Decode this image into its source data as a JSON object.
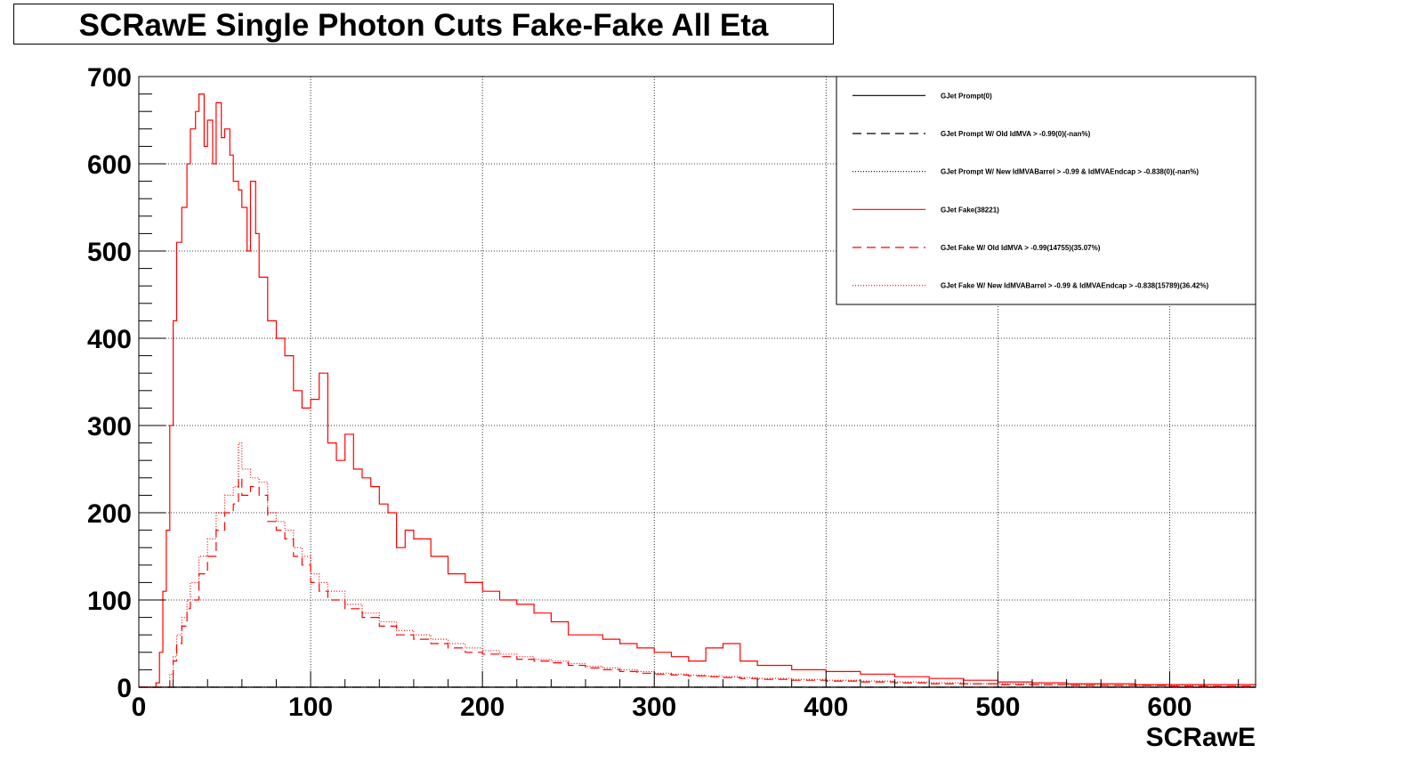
{
  "chart_data": {
    "type": "line",
    "title": "SCRawE Single Photon Cuts Fake-Fake All Eta",
    "xlabel": "SCRawE",
    "ylabel": "",
    "xlim": [
      0,
      650
    ],
    "ylim": [
      0,
      700
    ],
    "x_ticks": [
      0,
      100,
      200,
      300,
      400,
      500,
      600
    ],
    "y_ticks": [
      0,
      100,
      200,
      300,
      400,
      500,
      600,
      700
    ],
    "grid": true,
    "legend_position": "top-right",
    "series": [
      {
        "name": "GJet Prompt(0)",
        "color": "#000000",
        "dash": "solid",
        "x": [
          0,
          650
        ],
        "y": [
          0,
          0
        ]
      },
      {
        "name": "GJet Prompt W/ Old IdMVA > -0.99(0)(-nan%)",
        "color": "#000000",
        "dash": "dashed",
        "x": [
          0,
          650
        ],
        "y": [
          0,
          0
        ]
      },
      {
        "name": "GJet Prompt W/ New IdMVABarrel > -0.99 & IdMVAEndcap > -0.838(0)(-nan%)",
        "color": "#000000",
        "dash": "dotted",
        "x": [
          0,
          650
        ],
        "y": [
          0,
          0
        ]
      },
      {
        "name": "GJet Fake(38221)",
        "color": "#ff0000",
        "dash": "solid",
        "x": [
          0,
          10,
          12,
          14,
          16,
          18,
          20,
          22,
          25,
          28,
          30,
          33,
          35,
          38,
          40,
          43,
          45,
          48,
          50,
          53,
          55,
          58,
          60,
          63,
          65,
          68,
          70,
          75,
          80,
          85,
          90,
          95,
          100,
          105,
          110,
          115,
          120,
          125,
          130,
          135,
          140,
          145,
          150,
          155,
          160,
          170,
          180,
          190,
          200,
          210,
          220,
          230,
          240,
          250,
          260,
          270,
          280,
          290,
          300,
          310,
          320,
          330,
          340,
          350,
          360,
          380,
          400,
          420,
          440,
          460,
          480,
          500,
          520,
          540,
          560,
          580,
          600,
          620,
          650
        ],
        "y": [
          0,
          5,
          40,
          110,
          180,
          300,
          420,
          510,
          550,
          600,
          640,
          660,
          680,
          620,
          650,
          600,
          670,
          630,
          640,
          610,
          580,
          570,
          550,
          500,
          580,
          520,
          470,
          420,
          400,
          380,
          340,
          320,
          330,
          360,
          280,
          260,
          290,
          250,
          240,
          230,
          210,
          200,
          160,
          180,
          170,
          150,
          130,
          120,
          110,
          100,
          95,
          85,
          75,
          60,
          60,
          55,
          50,
          45,
          40,
          35,
          30,
          45,
          50,
          30,
          25,
          20,
          18,
          15,
          12,
          10,
          8,
          6,
          5,
          4,
          4,
          3,
          3,
          3,
          2
        ]
      },
      {
        "name": "GJet Fake W/ Old IdMVA > -0.99(14755)(35.07%)",
        "color": "#ff0000",
        "dash": "dashed",
        "x": [
          0,
          18,
          20,
          22,
          25,
          28,
          30,
          35,
          40,
          45,
          50,
          55,
          58,
          60,
          65,
          70,
          75,
          80,
          85,
          90,
          95,
          100,
          105,
          110,
          120,
          130,
          140,
          150,
          160,
          170,
          180,
          190,
          200,
          210,
          220,
          230,
          240,
          250,
          260,
          270,
          280,
          290,
          300,
          310,
          320,
          330,
          340,
          350,
          360,
          380,
          400,
          420,
          440,
          460,
          480,
          500,
          520,
          540,
          560,
          580,
          600,
          620,
          650
        ],
        "y": [
          0,
          10,
          30,
          50,
          70,
          90,
          100,
          130,
          150,
          180,
          200,
          210,
          240,
          220,
          230,
          220,
          190,
          180,
          170,
          150,
          140,
          120,
          110,
          100,
          90,
          80,
          70,
          60,
          55,
          50,
          45,
          40,
          38,
          35,
          32,
          30,
          28,
          25,
          22,
          20,
          18,
          16,
          15,
          14,
          13,
          12,
          11,
          10,
          9,
          8,
          7,
          6,
          5,
          4,
          4,
          3,
          3,
          2,
          2,
          2,
          1,
          1,
          1
        ]
      },
      {
        "name": "GJet Fake W/ New IdMVABarrel > -0.99 & IdMVAEndcap > -0.838(15789)(36.42%)",
        "color": "#ff0000",
        "dash": "dotted",
        "x": [
          0,
          18,
          20,
          22,
          25,
          28,
          30,
          35,
          40,
          45,
          50,
          55,
          58,
          60,
          65,
          70,
          75,
          80,
          85,
          90,
          95,
          100,
          105,
          110,
          120,
          130,
          140,
          150,
          160,
          170,
          180,
          190,
          200,
          210,
          220,
          230,
          240,
          250,
          260,
          270,
          280,
          290,
          300,
          310,
          320,
          330,
          340,
          350,
          360,
          380,
          400,
          420,
          440,
          460,
          480,
          500,
          520,
          540,
          560,
          580,
          600,
          620,
          650
        ],
        "y": [
          0,
          15,
          35,
          60,
          80,
          100,
          120,
          150,
          170,
          200,
          220,
          230,
          280,
          250,
          240,
          235,
          200,
          190,
          180,
          160,
          150,
          130,
          120,
          110,
          95,
          85,
          75,
          65,
          60,
          55,
          50,
          45,
          42,
          38,
          35,
          32,
          30,
          27,
          24,
          22,
          20,
          18,
          16,
          15,
          14,
          13,
          12,
          11,
          10,
          9,
          8,
          7,
          6,
          5,
          4,
          4,
          3,
          3,
          2,
          2,
          2,
          1,
          1
        ]
      }
    ]
  }
}
